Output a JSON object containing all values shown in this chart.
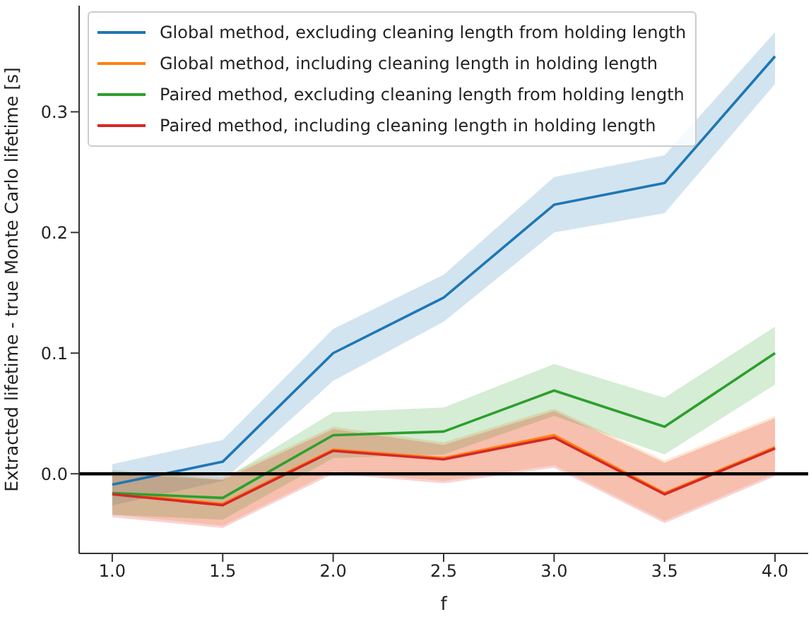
{
  "chart_data": {
    "type": "line",
    "xlabel": "f",
    "ylabel": "Extracted lifetime - true Monte Carlo lifetime [s]",
    "x": [
      1.0,
      1.5,
      2.0,
      2.5,
      3.0,
      3.5,
      4.0
    ],
    "xlim": [
      0.85,
      4.15
    ],
    "xticks": [
      {
        "value": 1,
        "label": "1.0"
      },
      {
        "value": 1.5,
        "label": "1.5"
      },
      {
        "value": 2,
        "label": "2.0"
      },
      {
        "value": 2.5,
        "label": "2.5"
      },
      {
        "value": 3,
        "label": "3.0"
      },
      {
        "value": 3.5,
        "label": "3.5"
      },
      {
        "value": 4,
        "label": "4.0"
      }
    ],
    "ylim": [
      -0.066,
      0.388
    ],
    "yticks": [
      {
        "value": 0,
        "label": "0.0"
      },
      {
        "value": 0.1,
        "label": "0.1"
      },
      {
        "value": 0.2,
        "label": "0.2"
      },
      {
        "value": 0.3,
        "label": "0.3"
      }
    ],
    "grid": false,
    "legend": "top",
    "line_style": "solid",
    "ref_lines": [
      {
        "axis": "y",
        "value": 0,
        "color": "#000000"
      }
    ],
    "series": [
      {
        "name": "Global method, excluding cleaning length from holding length",
        "color": "#1f77b4",
        "values": [
          -0.009,
          0.01,
          0.1,
          0.146,
          0.223,
          0.241,
          0.346
        ],
        "lower": [
          -0.026,
          -0.006,
          0.077,
          0.126,
          0.2,
          0.216,
          0.323
        ],
        "upper": [
          0.008,
          0.028,
          0.12,
          0.165,
          0.246,
          0.264,
          0.366
        ]
      },
      {
        "name": "Global method, including cleaning length in holding length",
        "color": "#ff7f0e",
        "values": [
          -0.016,
          -0.025,
          0.02,
          0.013,
          0.032,
          -0.016,
          0.022
        ],
        "lower": [
          -0.034,
          -0.043,
          0.002,
          -0.006,
          0.007,
          -0.039,
          0.0
        ],
        "upper": [
          0.002,
          -0.003,
          0.039,
          0.026,
          0.054,
          0.011,
          0.048
        ]
      },
      {
        "name": "Paired method, excluding cleaning length from holding length",
        "color": "#2ca02c",
        "values": [
          -0.016,
          -0.02,
          0.032,
          0.035,
          0.069,
          0.039,
          0.1
        ],
        "lower": [
          -0.034,
          -0.038,
          0.013,
          0.016,
          0.048,
          0.016,
          0.074
        ],
        "upper": [
          0.003,
          -0.005,
          0.051,
          0.055,
          0.091,
          0.063,
          0.122
        ]
      },
      {
        "name": "Paired method, including cleaning length in holding length",
        "color": "#d62728",
        "values": [
          -0.017,
          -0.026,
          0.019,
          0.012,
          0.03,
          -0.017,
          0.021
        ],
        "lower": [
          -0.036,
          -0.045,
          0.0,
          -0.008,
          0.005,
          -0.041,
          -0.002
        ],
        "upper": [
          0.0,
          -0.005,
          0.037,
          0.024,
          0.052,
          0.009,
          0.046
        ]
      }
    ]
  }
}
